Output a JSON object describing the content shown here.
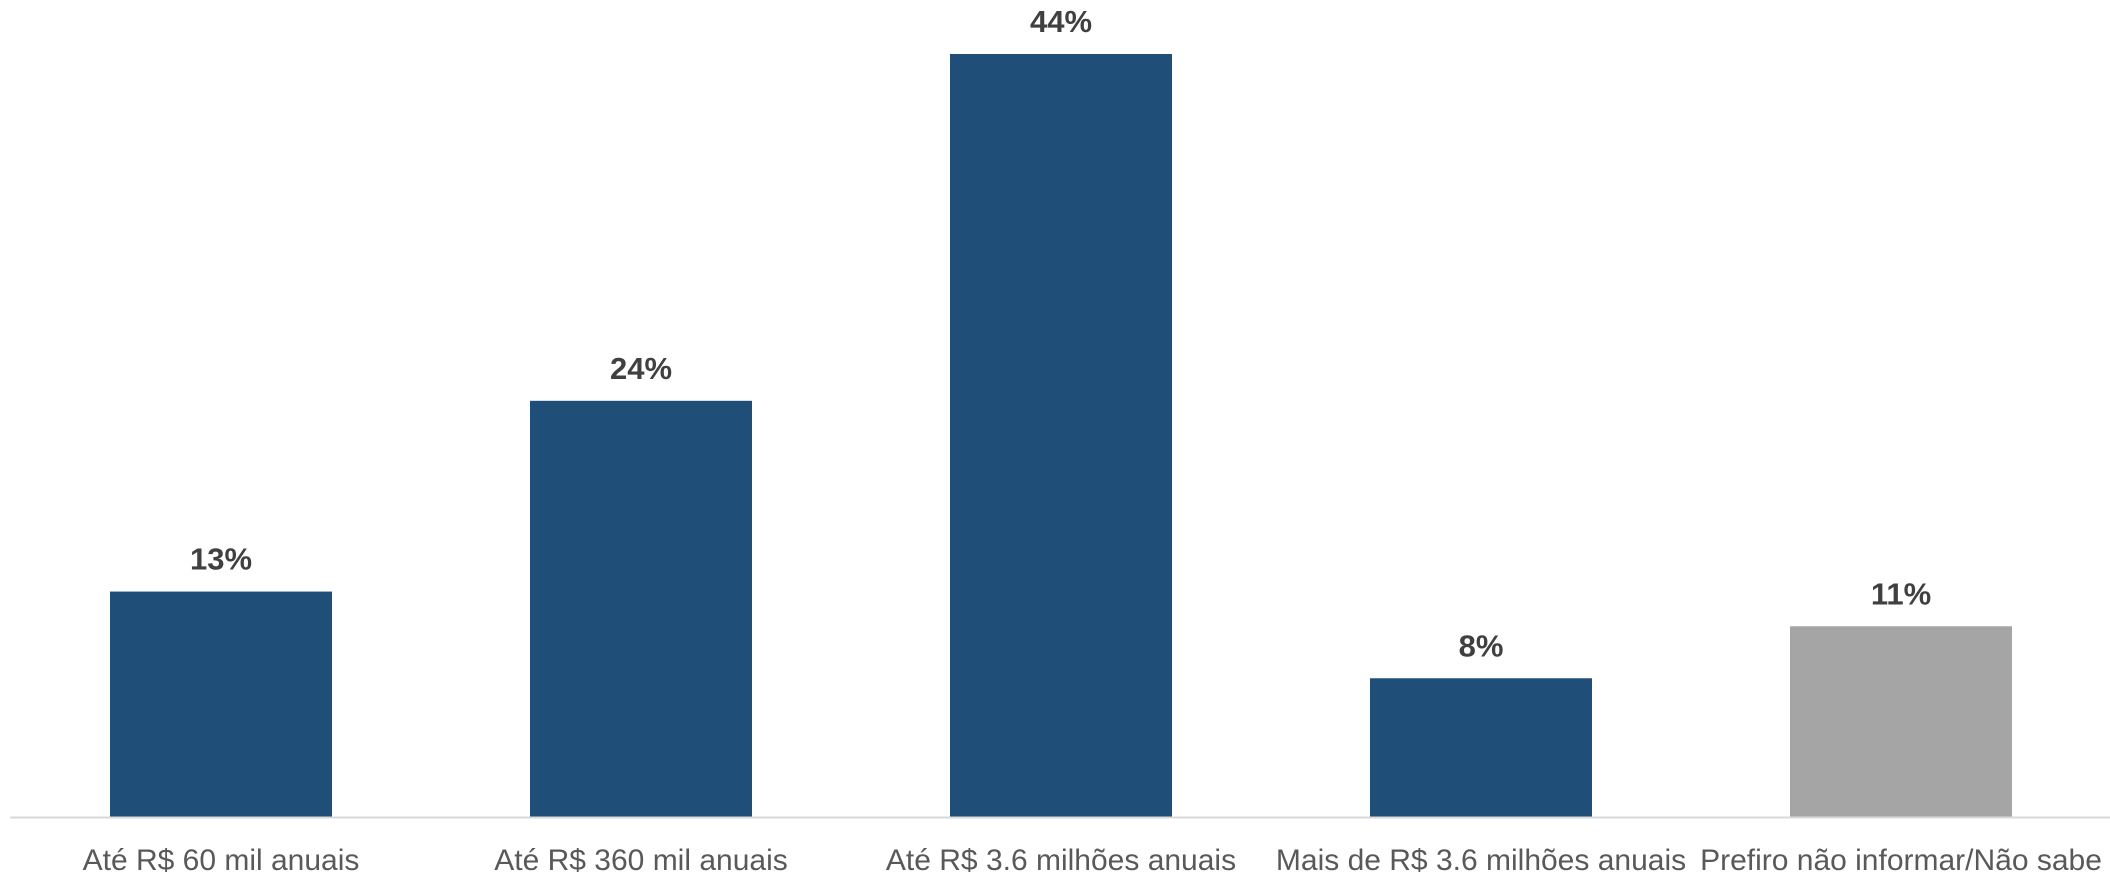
{
  "chart_data": {
    "type": "bar",
    "title": "",
    "xlabel": "",
    "ylabel": "",
    "categories": [
      "Até R$ 60 mil anuais",
      "Até R$ 360 mil anuais",
      "Até R$ 3.6 milhões anuais",
      "Mais de R$ 3.6 milhões anuais",
      "Prefiro não informar/Não sabe"
    ],
    "values": [
      13,
      24,
      44,
      8,
      11
    ],
    "data_labels": [
      "13%",
      "24%",
      "44%",
      "8%",
      "11%"
    ],
    "bar_colors": [
      "#1f4e79",
      "#1f4e79",
      "#1f4e79",
      "#1f4e79",
      "#a5a5a5"
    ],
    "ylim": [
      0,
      44
    ],
    "grid": false,
    "legend": "none",
    "y_axis_shown": false
  },
  "colors": {
    "label_text": "#404040",
    "tick_text": "#595959",
    "axis_line": "#d9d9d9"
  }
}
